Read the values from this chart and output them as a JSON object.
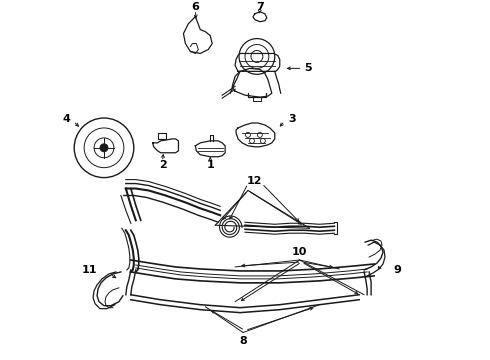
{
  "bg_color": "#ffffff",
  "fig_width": 4.9,
  "fig_height": 3.6,
  "dpi": 100,
  "line_color": "#1a1a1a",
  "text_color": "#000000",
  "font_size": 7.0,
  "font_size_bold": 8.0
}
